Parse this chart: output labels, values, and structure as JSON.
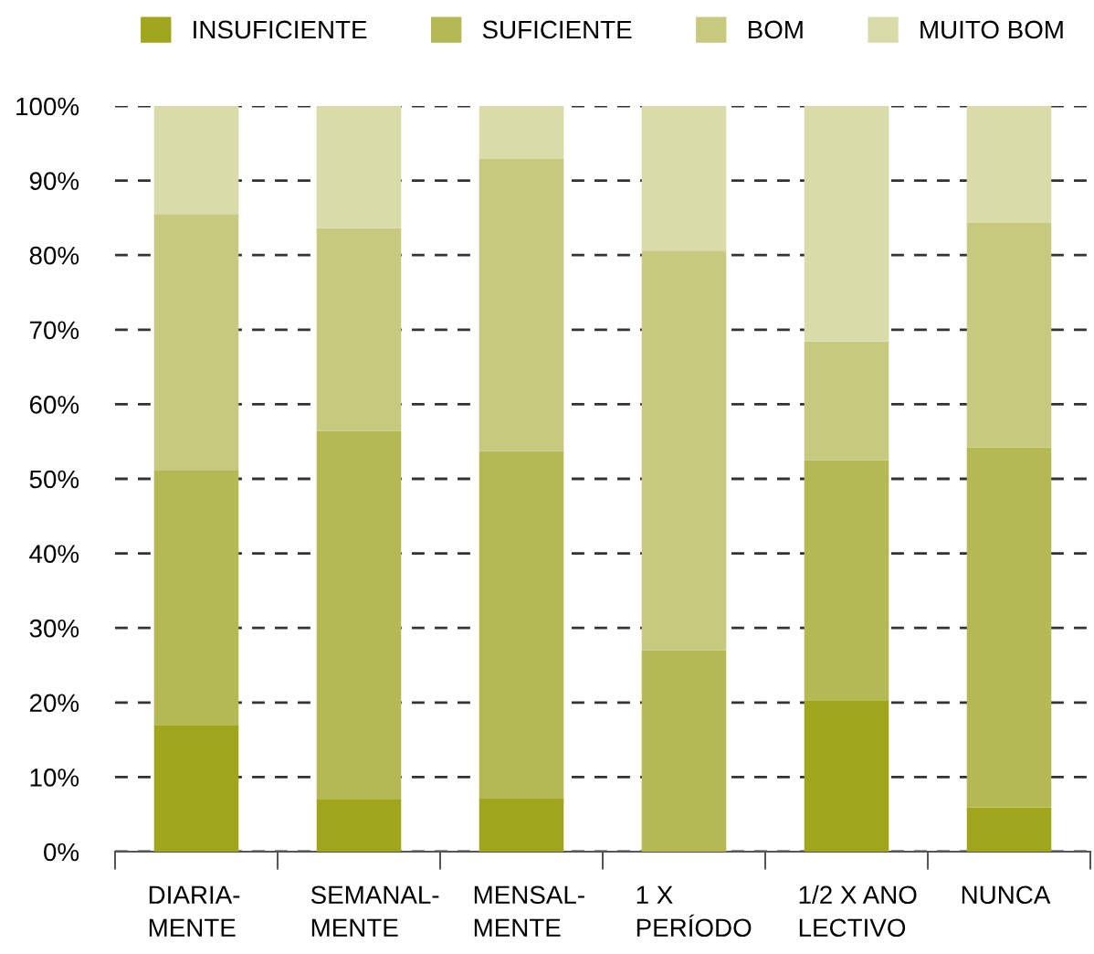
{
  "chart_data": {
    "type": "bar",
    "stacked": true,
    "categories": [
      "DIARIA-\nMENTE",
      "SEMANAL-\nMENTE",
      "MENSAL-\nMENTE",
      "1 X\nPERÍODO",
      "1/2 X ANO\nLECTIVO",
      "NUNCA"
    ],
    "series": [
      {
        "name": "INSUFICIENTE",
        "color": "#a0a61b",
        "values": [
          17,
          7,
          7.1,
          0,
          20.3,
          5.9
        ]
      },
      {
        "name": "SUFICIENTE",
        "color": "#b4b953",
        "values": [
          34.2,
          49.4,
          46.6,
          27,
          32.2,
          48.3
        ]
      },
      {
        "name": "BOM",
        "color": "#c6c97e",
        "values": [
          34.3,
          27.2,
          39.2,
          53.6,
          15.9,
          30.1
        ]
      },
      {
        "name": "MUITO BOM",
        "color": "#d9dba8",
        "values": [
          14.5,
          16.4,
          7.1,
          19.4,
          31.6,
          15.7
        ]
      }
    ],
    "ylim": [
      0,
      100
    ],
    "yticks": [
      {
        "value": 0,
        "label": "0%"
      },
      {
        "value": 10,
        "label": "10%"
      },
      {
        "value": 20,
        "label": "20%"
      },
      {
        "value": 30,
        "label": "30%"
      },
      {
        "value": 40,
        "label": "40%"
      },
      {
        "value": 50,
        "label": "50%"
      },
      {
        "value": 60,
        "label": "60%"
      },
      {
        "value": 70,
        "label": "70%"
      },
      {
        "value": 80,
        "label": "80%"
      },
      {
        "value": 90,
        "label": "90%"
      },
      {
        "value": 100,
        "label": "100%"
      }
    ],
    "grid": "y",
    "legend": "top"
  }
}
